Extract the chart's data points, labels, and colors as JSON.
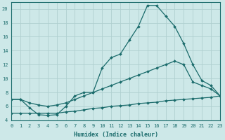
{
  "background_color": "#cde8e8",
  "grid_color": "#b0d0d0",
  "line_color": "#1a6b6b",
  "xlabel": "Humidex (Indice chaleur)",
  "ylim": [
    4,
    21
  ],
  "xlim": [
    0,
    23
  ],
  "yticks": [
    4,
    6,
    8,
    10,
    12,
    14,
    16,
    18,
    20
  ],
  "xticks": [
    0,
    1,
    2,
    3,
    4,
    5,
    6,
    7,
    8,
    9,
    10,
    11,
    12,
    13,
    14,
    15,
    16,
    17,
    18,
    19,
    20,
    21,
    22,
    23
  ],
  "series": [
    {
      "x": [
        0,
        1,
        2,
        3,
        4,
        5,
        6,
        7,
        8,
        9,
        10,
        11,
        12,
        13,
        14,
        15,
        16,
        17,
        18,
        19,
        20,
        21,
        22,
        23
      ],
      "y": [
        7,
        7,
        5.8,
        4.8,
        4.7,
        4.8,
        6.0,
        7.5,
        8.0,
        8.0,
        11.5,
        13.0,
        13.5,
        15.5,
        17.5,
        20.5,
        20.5,
        19.0,
        17.5,
        15.0,
        12.0,
        9.7,
        9.0,
        7.5
      ]
    },
    {
      "x": [
        0,
        1,
        2,
        3,
        4,
        5,
        6,
        7,
        8,
        9,
        10,
        11,
        12,
        13,
        14,
        15,
        16,
        17,
        18,
        19,
        20,
        21,
        22,
        23
      ],
      "y": [
        7.0,
        7.0,
        6.5,
        6.2,
        6.0,
        6.2,
        6.5,
        7.0,
        7.5,
        8.0,
        8.5,
        9.0,
        9.5,
        10.0,
        10.5,
        11.0,
        11.5,
        12.0,
        12.5,
        12.0,
        9.5,
        9.0,
        8.5,
        7.5
      ]
    },
    {
      "x": [
        0,
        1,
        2,
        3,
        4,
        5,
        6,
        7,
        8,
        9,
        10,
        11,
        12,
        13,
        14,
        15,
        16,
        17,
        18,
        19,
        20,
        21,
        22,
        23
      ],
      "y": [
        5.0,
        5.0,
        5.0,
        5.0,
        5.0,
        5.0,
        5.2,
        5.3,
        5.5,
        5.7,
        5.8,
        6.0,
        6.1,
        6.2,
        6.4,
        6.5,
        6.6,
        6.8,
        6.9,
        7.0,
        7.1,
        7.2,
        7.3,
        7.5
      ]
    }
  ]
}
